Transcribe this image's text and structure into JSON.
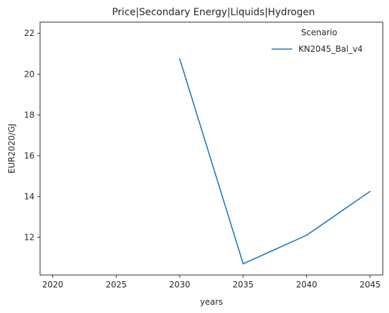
{
  "chart_data": {
    "type": "line",
    "title": "Price|Secondary Energy|Liquids|Hydrogen",
    "xlabel": "years",
    "ylabel": "EUR2020/GJ",
    "xlim": [
      2019,
      2046
    ],
    "ylim": [
      10.15,
      22.55
    ],
    "xticks": [
      2020,
      2025,
      2030,
      2035,
      2040,
      2045
    ],
    "yticks": [
      12,
      14,
      16,
      18,
      20,
      22
    ],
    "grid": false,
    "legend": {
      "title": "Scenario",
      "placement": "top-right"
    },
    "series": [
      {
        "name": "KN2045_Bal_v4",
        "color": "#1f77b4",
        "x": [
          2030,
          2035,
          2040,
          2045
        ],
        "y": [
          20.75,
          10.7,
          12.1,
          14.25
        ]
      }
    ]
  }
}
